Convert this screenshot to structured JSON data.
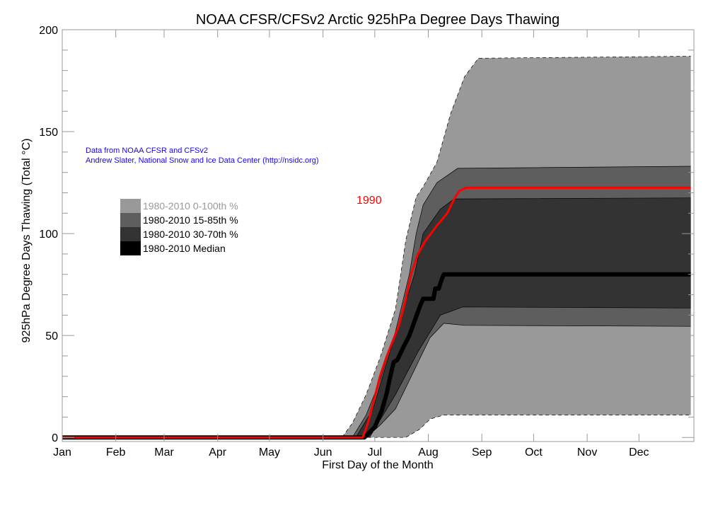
{
  "chart_data": {
    "type": "area",
    "title": "NOAA CFSR/CFSv2 Arctic 925hPa Degree Days Thawing",
    "xlabel": "First Day of the Month",
    "ylabel": "925hPa Degree Days Thawing (Total °C)",
    "ylim": [
      -2,
      200
    ],
    "xlim": [
      "Jan 1",
      "Dec 31"
    ],
    "yticks": [
      0,
      50,
      100,
      150,
      200
    ],
    "xtick_labels": [
      "Jan",
      "Feb",
      "Mar",
      "Apr",
      "May",
      "Jun",
      "Jul",
      "Aug",
      "Sep",
      "Oct",
      "Nov",
      "Dec"
    ],
    "grid": false,
    "legend_placement": "left",
    "annotations": {
      "credit_line1": "Data from NOAA CFSR and CFSv2",
      "credit_line2": "Andrew Slater, National Snow and Ice Data Center (http://nsidc.org)",
      "year_label": "1990"
    },
    "colors": {
      "band_0_100": "#999999",
      "band_15_85": "#5e5e5e",
      "band_30_70": "#333333",
      "median": "#000000",
      "year": "#ff0000",
      "credit": "#1a00ff"
    },
    "bands": [
      {
        "name": "1980-2010 0-100th %",
        "color": "#999999",
        "upper": [
          [
            "Jan 1",
            0
          ],
          [
            "Jun 12",
            0
          ],
          [
            "Jun 18",
            7
          ],
          [
            "Jun 26",
            21
          ],
          [
            "Jul 4",
            39
          ],
          [
            "Jul 13",
            63
          ],
          [
            "Jul 19",
            97
          ],
          [
            "Jul 25",
            118
          ],
          [
            "Jul 29",
            123
          ],
          [
            "Aug 6",
            135
          ],
          [
            "Aug 14",
            159
          ],
          [
            "Aug 22",
            177
          ],
          [
            "Aug 30",
            186
          ],
          [
            "Dec 31",
            187
          ]
        ],
        "lower": [
          [
            "Jan 1",
            0
          ],
          [
            "Jul 19",
            0
          ],
          [
            "Jul 27",
            4
          ],
          [
            "Aug 2",
            9
          ],
          [
            "Aug 10",
            11
          ],
          [
            "Dec 31",
            11
          ]
        ]
      },
      {
        "name": "1980-2010 15-85th %",
        "color": "#5e5e5e",
        "upper": [
          [
            "Jan 1",
            0
          ],
          [
            "Jun 18",
            0
          ],
          [
            "Jun 26",
            11
          ],
          [
            "Jul 4",
            28
          ],
          [
            "Jul 13",
            52
          ],
          [
            "Jul 21",
            80
          ],
          [
            "Jul 25",
            100
          ],
          [
            "Jul 29",
            114
          ],
          [
            "Aug 6",
            125
          ],
          [
            "Aug 18",
            132
          ],
          [
            "Dec 31",
            133
          ]
        ],
        "lower": [
          [
            "Jan 1",
            0
          ],
          [
            "Jun 26",
            0
          ],
          [
            "Jul 4",
            6
          ],
          [
            "Jul 13",
            14
          ],
          [
            "Jul 21",
            28
          ],
          [
            "Jul 29",
            42
          ],
          [
            "Aug 2",
            49
          ],
          [
            "Aug 10",
            56
          ],
          [
            "Aug 22",
            55
          ],
          [
            "Dec 31",
            54.5
          ]
        ]
      },
      {
        "name": "1980-2010 30-70th %",
        "color": "#333333",
        "upper": [
          [
            "Jan 1",
            0
          ],
          [
            "Jun 20",
            0
          ],
          [
            "Jun 30",
            14
          ],
          [
            "Jul 13",
            51
          ],
          [
            "Jul 24",
            80
          ],
          [
            "Jul 29",
            100
          ],
          [
            "Aug 8",
            112
          ],
          [
            "Aug 16",
            117
          ],
          [
            "Dec 31",
            117.5
          ]
        ],
        "lower": [
          [
            "Jan 1",
            0
          ],
          [
            "Jun 28",
            0
          ],
          [
            "Jul 13",
            21
          ],
          [
            "Jul 26",
            42
          ],
          [
            "Aug 8",
            60
          ],
          [
            "Aug 21",
            64
          ],
          [
            "Dec 31",
            63.5
          ]
        ]
      }
    ],
    "series": [
      {
        "name": "1980-2010 Median",
        "color": "#000000",
        "points": [
          [
            "Jan 1",
            0
          ],
          [
            "Jun 25",
            0
          ],
          [
            "Jul 1",
            5
          ],
          [
            "Jul 5",
            13
          ],
          [
            "Jul 8",
            22
          ],
          [
            "Jul 10",
            30
          ],
          [
            "Jul 12",
            37
          ],
          [
            "Jul 14",
            38
          ],
          [
            "Jul 18",
            45
          ],
          [
            "Jul 21",
            50
          ],
          [
            "Jul 24",
            57
          ],
          [
            "Jul 27",
            64
          ],
          [
            "Jul 29",
            68
          ],
          [
            "Aug 4",
            68
          ],
          [
            "Aug 5",
            73
          ],
          [
            "Aug 7",
            73
          ],
          [
            "Aug 9",
            78
          ],
          [
            "Aug 10",
            80
          ],
          [
            "Dec 31",
            80
          ]
        ]
      },
      {
        "name": "1990",
        "color": "#ff0000",
        "points": [
          [
            "Jan 1",
            0
          ],
          [
            "Jun 24",
            0
          ],
          [
            "Jun 27",
            7
          ],
          [
            "Jul 1",
            20
          ],
          [
            "Jul 4",
            30
          ],
          [
            "Jul 8",
            40
          ],
          [
            "Jul 15",
            55
          ],
          [
            "Jul 19",
            68
          ],
          [
            "Jul 22",
            80
          ],
          [
            "Jul 26",
            90
          ],
          [
            "Jul 30",
            96
          ],
          [
            "Aug 6",
            104
          ],
          [
            "Aug 12",
            110
          ],
          [
            "Aug 16",
            117
          ],
          [
            "Aug 19",
            121
          ],
          [
            "Aug 23",
            122.5
          ],
          [
            "Dec 31",
            122.5
          ]
        ]
      }
    ]
  }
}
